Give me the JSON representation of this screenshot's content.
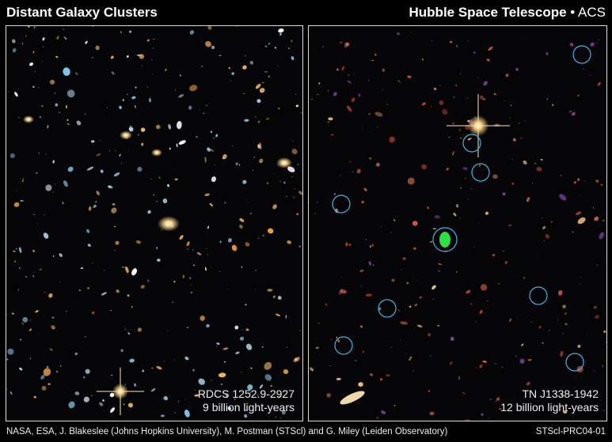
{
  "header": {
    "title": "Distant Galaxy Clusters",
    "instrument_main": "Hubble Space Telescope",
    "separator": "•",
    "instrument_camera": "ACS"
  },
  "panels": [
    {
      "name": "RDCS 1252.9-2927",
      "distance": "9 billion light-years"
    },
    {
      "name": "TN J1338-1942",
      "distance": "12 billion light-years",
      "marker_color": "#3fb6e8"
    }
  ],
  "footer": {
    "credit": "NASA, ESA, J. Blakeslee (Johns Hopkins University), M. Postman (STScl) and G. Miley (Leiden Observatory)",
    "release_id": "STScl-PRC04-01"
  }
}
